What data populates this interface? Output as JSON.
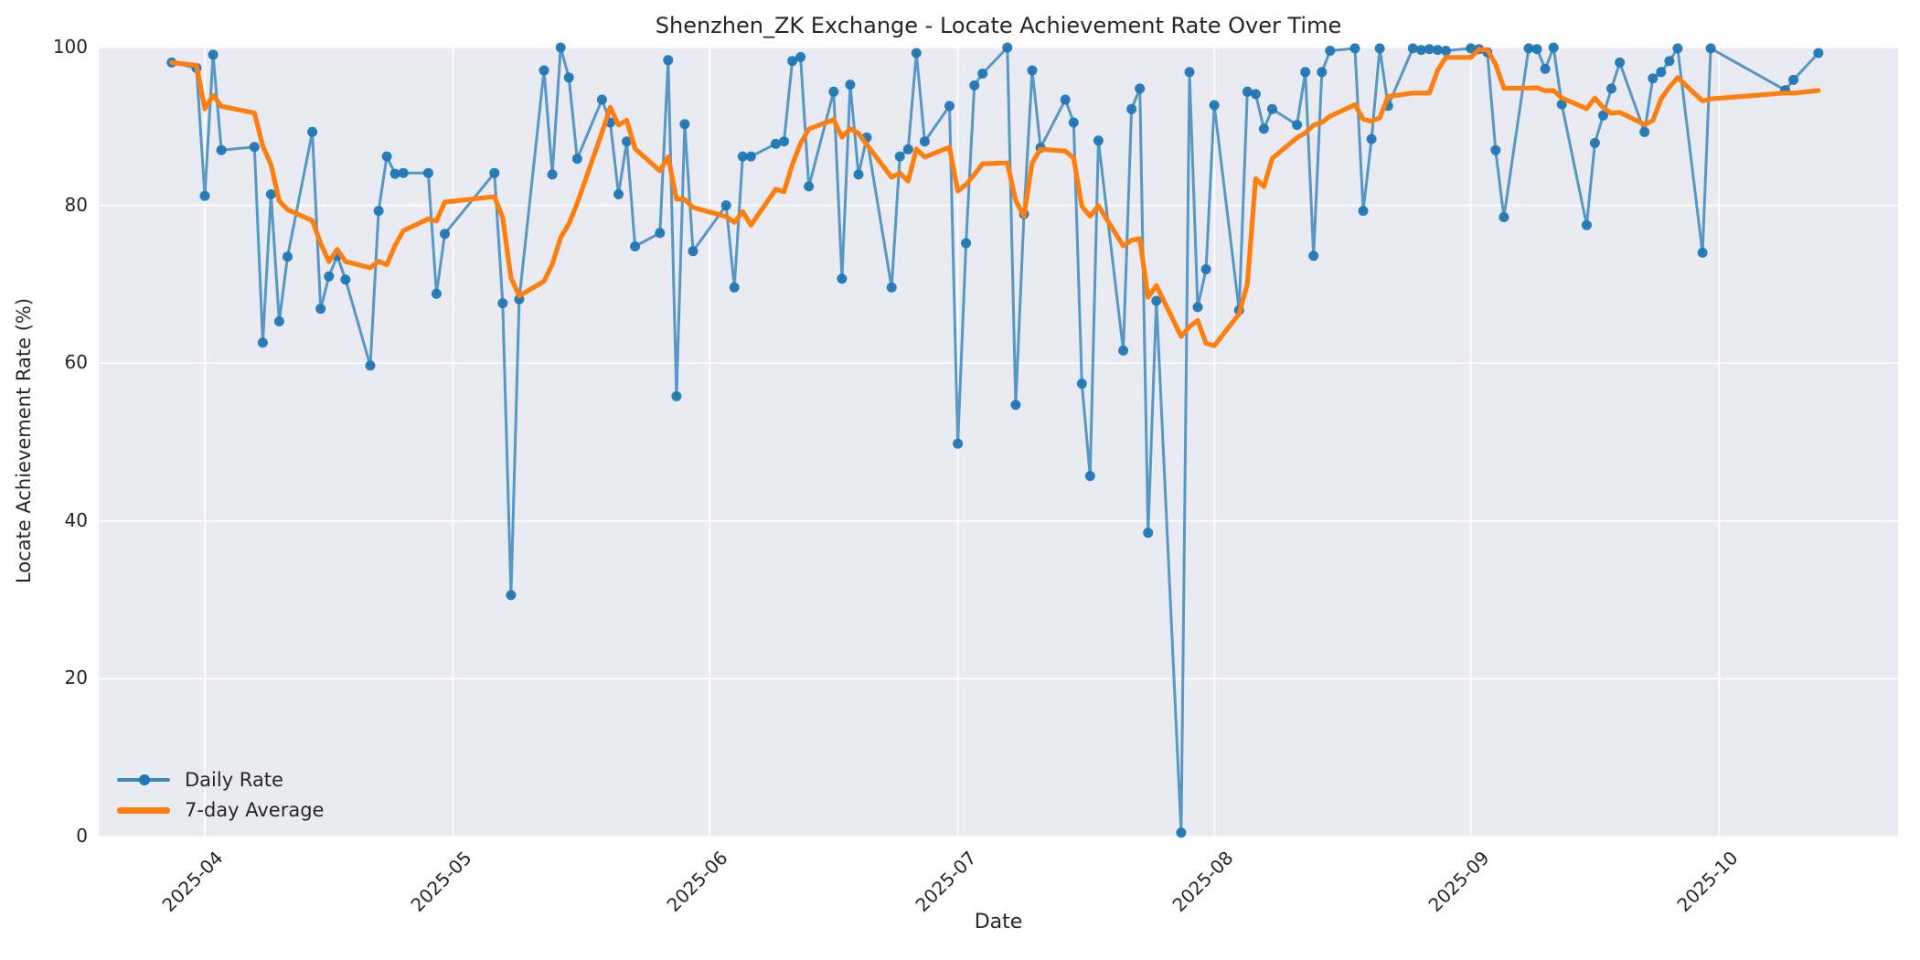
{
  "title": "Shenzhen_ZK Exchange - Locate Achievement Rate Over Time",
  "axes": {
    "x_label": "Date",
    "y_label": "Locate Achievement Rate (%)",
    "x_tick_labels": [
      "2025-04",
      "2025-05",
      "2025-06",
      "2025-07",
      "2025-08",
      "2025-09",
      "2025-10"
    ],
    "y_tick_labels": [
      "0",
      "20",
      "40",
      "60",
      "80",
      "100"
    ],
    "y_tick_values": [
      0,
      20,
      40,
      60,
      80,
      100
    ],
    "y_range": [
      0,
      100
    ]
  },
  "legend": {
    "daily_label": "Daily Rate",
    "average_label": "7-day Average",
    "position": "lower left"
  },
  "colors": {
    "plot_background": "#eaeaf2",
    "figure_background": "#ffffff",
    "grid": "#ffffff",
    "daily_line": "#1f77b4",
    "average_line": "#ff7f0e",
    "text": "#262626"
  },
  "chart_data": {
    "type": "line",
    "title": "Shenzhen_ZK Exchange - Locate Achievement Rate Over Time",
    "xlabel": "Date",
    "ylabel": "Locate Achievement Rate (%)",
    "ylim": [
      0,
      100
    ],
    "grid": true,
    "legend_position": "lower left",
    "x_ticks": [
      "2025-04",
      "2025-05",
      "2025-06",
      "2025-07",
      "2025-08",
      "2025-09",
      "2025-10"
    ],
    "series": [
      {
        "name": "Daily Rate",
        "style": "line_with_markers",
        "points": [
          [
            "2025-03-28",
            98.1
          ],
          [
            "2025-03-31",
            97.4
          ],
          [
            "2025-04-01",
            81.2
          ],
          [
            "2025-04-02",
            99.1
          ],
          [
            "2025-04-03",
            87.0
          ],
          [
            "2025-04-07",
            87.4
          ],
          [
            "2025-04-08",
            62.6
          ],
          [
            "2025-04-09",
            81.4
          ],
          [
            "2025-04-10",
            65.3
          ],
          [
            "2025-04-11",
            73.5
          ],
          [
            "2025-04-14",
            89.3
          ],
          [
            "2025-04-15",
            66.9
          ],
          [
            "2025-04-16",
            71.0
          ],
          [
            "2025-04-17",
            73.6
          ],
          [
            "2025-04-18",
            70.6
          ],
          [
            "2025-04-21",
            59.7
          ],
          [
            "2025-04-22",
            79.3
          ],
          [
            "2025-04-23",
            86.2
          ],
          [
            "2025-04-24",
            84.0
          ],
          [
            "2025-04-25",
            84.1
          ],
          [
            "2025-04-28",
            84.1
          ],
          [
            "2025-04-29",
            68.8
          ],
          [
            "2025-04-30",
            76.4
          ],
          [
            "2025-05-06",
            84.1
          ],
          [
            "2025-05-07",
            67.6
          ],
          [
            "2025-05-08",
            30.6
          ],
          [
            "2025-05-09",
            68.1
          ],
          [
            "2025-05-12",
            97.1
          ],
          [
            "2025-05-13",
            83.9
          ],
          [
            "2025-05-14",
            100.0
          ],
          [
            "2025-05-15",
            96.2
          ],
          [
            "2025-05-16",
            85.9
          ],
          [
            "2025-05-19",
            93.4
          ],
          [
            "2025-05-20",
            90.5
          ],
          [
            "2025-05-21",
            81.4
          ],
          [
            "2025-05-22",
            88.1
          ],
          [
            "2025-05-23",
            74.8
          ],
          [
            "2025-05-26",
            76.5
          ],
          [
            "2025-05-27",
            98.4
          ],
          [
            "2025-05-28",
            55.8
          ],
          [
            "2025-05-29",
            90.3
          ],
          [
            "2025-05-30",
            74.2
          ],
          [
            "2025-06-03",
            80.0
          ],
          [
            "2025-06-04",
            69.6
          ],
          [
            "2025-06-05",
            86.2
          ],
          [
            "2025-06-06",
            86.2
          ],
          [
            "2025-06-09",
            87.8
          ],
          [
            "2025-06-10",
            88.1
          ],
          [
            "2025-06-11",
            98.3
          ],
          [
            "2025-06-12",
            98.8
          ],
          [
            "2025-06-13",
            82.4
          ],
          [
            "2025-06-16",
            94.4
          ],
          [
            "2025-06-17",
            70.7
          ],
          [
            "2025-06-18",
            95.3
          ],
          [
            "2025-06-19",
            83.9
          ],
          [
            "2025-06-20",
            88.6
          ],
          [
            "2025-06-23",
            69.6
          ],
          [
            "2025-06-24",
            86.2
          ],
          [
            "2025-06-25",
            87.1
          ],
          [
            "2025-06-26",
            99.3
          ],
          [
            "2025-06-27",
            88.1
          ],
          [
            "2025-06-30",
            92.6
          ],
          [
            "2025-07-01",
            49.8
          ],
          [
            "2025-07-02",
            75.2
          ],
          [
            "2025-07-03",
            95.2
          ],
          [
            "2025-07-04",
            96.7
          ],
          [
            "2025-07-07",
            100.0
          ],
          [
            "2025-07-08",
            54.7
          ],
          [
            "2025-07-09",
            78.9
          ],
          [
            "2025-07-10",
            97.1
          ],
          [
            "2025-07-11",
            87.3
          ],
          [
            "2025-07-14",
            93.4
          ],
          [
            "2025-07-15",
            90.5
          ],
          [
            "2025-07-16",
            57.4
          ],
          [
            "2025-07-17",
            45.7
          ],
          [
            "2025-07-18",
            88.2
          ],
          [
            "2025-07-21",
            61.6
          ],
          [
            "2025-07-22",
            92.2
          ],
          [
            "2025-07-23",
            94.8
          ],
          [
            "2025-07-24",
            38.5
          ],
          [
            "2025-07-25",
            67.9
          ],
          [
            "2025-07-28",
            0.5
          ],
          [
            "2025-07-29",
            96.9
          ],
          [
            "2025-07-30",
            67.1
          ],
          [
            "2025-07-31",
            71.9
          ],
          [
            "2025-08-01",
            92.7
          ],
          [
            "2025-08-04",
            66.7
          ],
          [
            "2025-08-05",
            94.4
          ],
          [
            "2025-08-06",
            94.1
          ],
          [
            "2025-08-07",
            89.7
          ],
          [
            "2025-08-08",
            92.2
          ],
          [
            "2025-08-11",
            90.2
          ],
          [
            "2025-08-12",
            96.9
          ],
          [
            "2025-08-13",
            73.6
          ],
          [
            "2025-08-14",
            96.9
          ],
          [
            "2025-08-15",
            99.6
          ],
          [
            "2025-08-18",
            99.9
          ],
          [
            "2025-08-19",
            79.3
          ],
          [
            "2025-08-20",
            88.4
          ],
          [
            "2025-08-21",
            99.9
          ],
          [
            "2025-08-22",
            92.6
          ],
          [
            "2025-08-25",
            99.9
          ],
          [
            "2025-08-26",
            99.7
          ],
          [
            "2025-08-27",
            99.8
          ],
          [
            "2025-08-28",
            99.7
          ],
          [
            "2025-08-29",
            99.6
          ],
          [
            "2025-09-01",
            99.9
          ],
          [
            "2025-09-02",
            99.8
          ],
          [
            "2025-09-03",
            99.4
          ],
          [
            "2025-09-04",
            87.0
          ],
          [
            "2025-09-05",
            78.5
          ],
          [
            "2025-09-08",
            99.9
          ],
          [
            "2025-09-09",
            99.8
          ],
          [
            "2025-09-10",
            97.3
          ],
          [
            "2025-09-11",
            100.0
          ],
          [
            "2025-09-12",
            92.8
          ],
          [
            "2025-09-15",
            77.5
          ],
          [
            "2025-09-16",
            87.9
          ],
          [
            "2025-09-17",
            91.4
          ],
          [
            "2025-09-18",
            94.8
          ],
          [
            "2025-09-19",
            98.1
          ],
          [
            "2025-09-22",
            89.3
          ],
          [
            "2025-09-23",
            96.1
          ],
          [
            "2025-09-24",
            96.9
          ],
          [
            "2025-09-25",
            98.3
          ],
          [
            "2025-09-26",
            99.9
          ],
          [
            "2025-09-29",
            74.0
          ],
          [
            "2025-09-30",
            99.9
          ],
          [
            "2025-10-09",
            94.6
          ],
          [
            "2025-10-10",
            95.9
          ],
          [
            "2025-10-13",
            99.3
          ]
        ]
      },
      {
        "name": "7-day Average",
        "style": "thick_line",
        "derived": "rolling mean of the last 7 daily points (min_periods=1), computed from the Daily Rate series above"
      }
    ]
  }
}
